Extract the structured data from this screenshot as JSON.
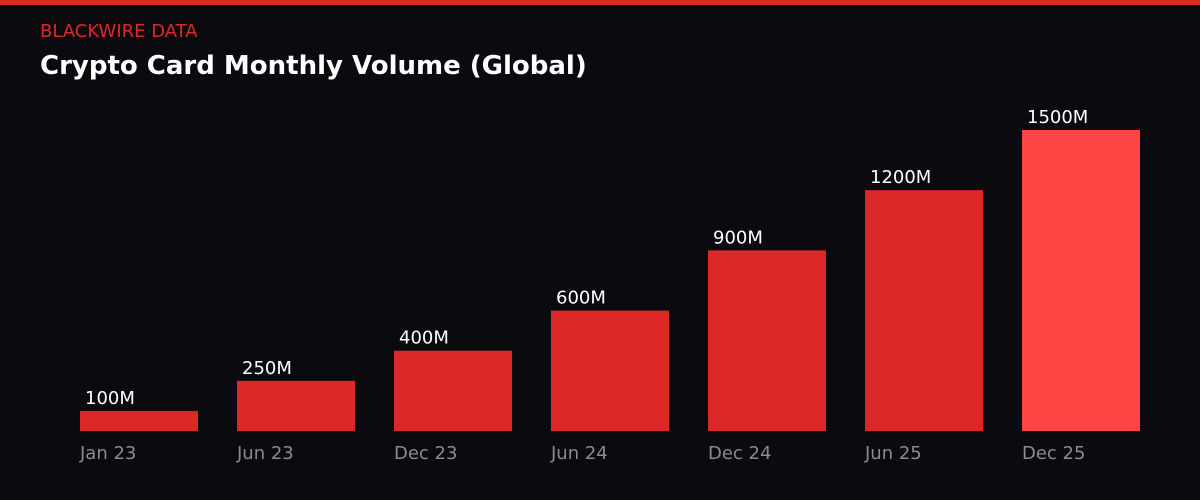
{
  "header": {
    "brand": "BLACKWIRE DATA",
    "title": "Crypto Card Monthly Volume (Global)"
  },
  "colors": {
    "accent": "#dc2828",
    "highlight": "#ff4444",
    "background": "#0b0b0f"
  },
  "chart_data": {
    "type": "bar",
    "title": "Crypto Card Monthly Volume (Global)",
    "categories": [
      "Jan 23",
      "Jun 23",
      "Dec 23",
      "Jun 24",
      "Dec 24",
      "Jun 25",
      "Dec 25"
    ],
    "values": [
      100,
      250,
      400,
      600,
      900,
      1200,
      1500
    ],
    "labels": [
      "100M",
      "250M",
      "400M",
      "600M",
      "900M",
      "1200M",
      "1500M"
    ],
    "unit": "M",
    "highlighted_category": "Dec 25",
    "ylim": [
      0,
      1500
    ],
    "grid": false,
    "xlabel": "",
    "ylabel": ""
  }
}
